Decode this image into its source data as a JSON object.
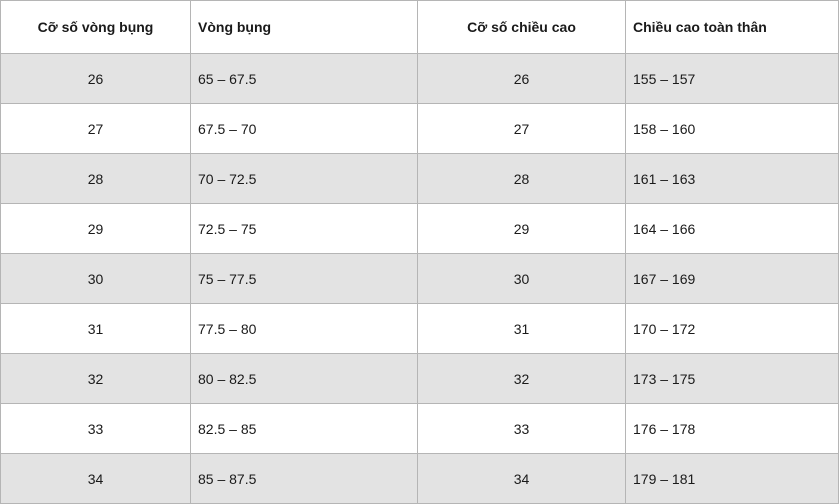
{
  "table": {
    "headers": [
      "Cỡ số vòng bụng",
      "Vòng bụng",
      "Cỡ số chiều cao",
      "Chiều cao toàn thân"
    ],
    "rows": [
      [
        "26",
        "65 – 67.5",
        "26",
        "155 – 157"
      ],
      [
        "27",
        "67.5 – 70",
        "27",
        "158 – 160"
      ],
      [
        "28",
        "70 – 72.5",
        "28",
        "161 – 163"
      ],
      [
        "29",
        "72.5 – 75",
        "29",
        "164 – 166"
      ],
      [
        "30",
        "75 – 77.5",
        "30",
        "167 – 169"
      ],
      [
        "31",
        "77.5 – 80",
        "31",
        "170 – 172"
      ],
      [
        "32",
        "80 – 82.5",
        "32",
        "173 – 175"
      ],
      [
        "33",
        "82.5 – 85",
        "33",
        "176 – 178"
      ],
      [
        "34",
        "85 – 87.5",
        "34",
        "179 – 181"
      ]
    ]
  },
  "colors": {
    "stripe": "#e3e3e3",
    "border": "#b5b5b5",
    "text": "#1a1a1a"
  }
}
